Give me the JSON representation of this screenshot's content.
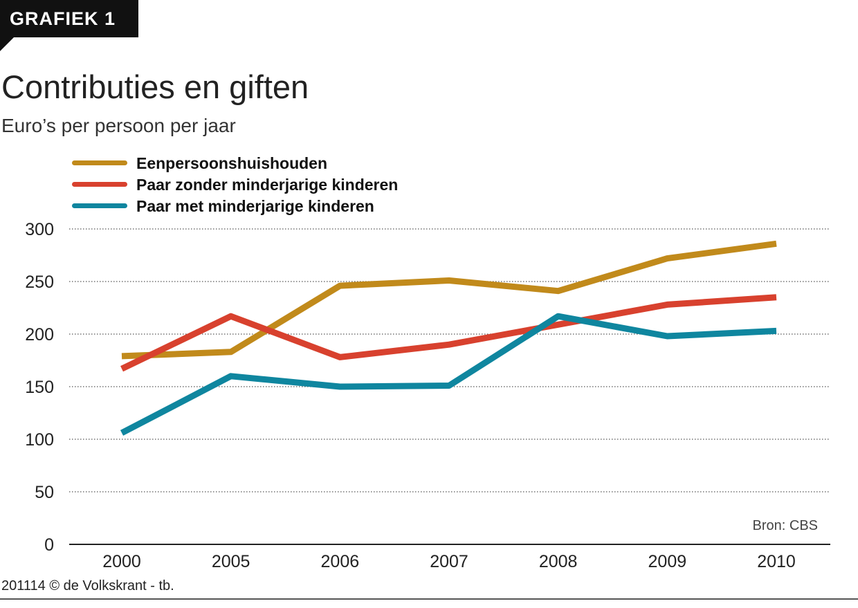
{
  "header": {
    "tag": "GRAFIEK 1",
    "title": "Contributies en giften",
    "subtitle": "Euro’s per persoon per jaar"
  },
  "footer": {
    "source": "Bron: CBS",
    "credit": "201114 © de Volkskrant - tb."
  },
  "chart_data": {
    "type": "line",
    "title": "Contributies en giften",
    "subtitle": "Euro’s per persoon per jaar",
    "xlabel": "",
    "ylabel": "",
    "categories": [
      "2000",
      "2005",
      "2006",
      "2007",
      "2008",
      "2009",
      "2010"
    ],
    "ylim": [
      0,
      300
    ],
    "yticks": [
      "0",
      "50",
      "100",
      "150",
      "200",
      "250",
      "300"
    ],
    "grid": true,
    "legend_position": "top-left",
    "series": [
      {
        "name": "Eenpersoonshuishouden",
        "color": "#c18a1b",
        "values": [
          179,
          183,
          246,
          251,
          241,
          272,
          286
        ]
      },
      {
        "name": "Paar zonder minderjarige kinderen",
        "color": "#d8412e",
        "values": [
          167,
          217,
          178,
          190,
          209,
          228,
          235
        ]
      },
      {
        "name": "Paar met minderjarige kinderen",
        "color": "#0f869f",
        "values": [
          106,
          160,
          150,
          151,
          217,
          198,
          203
        ]
      }
    ]
  }
}
